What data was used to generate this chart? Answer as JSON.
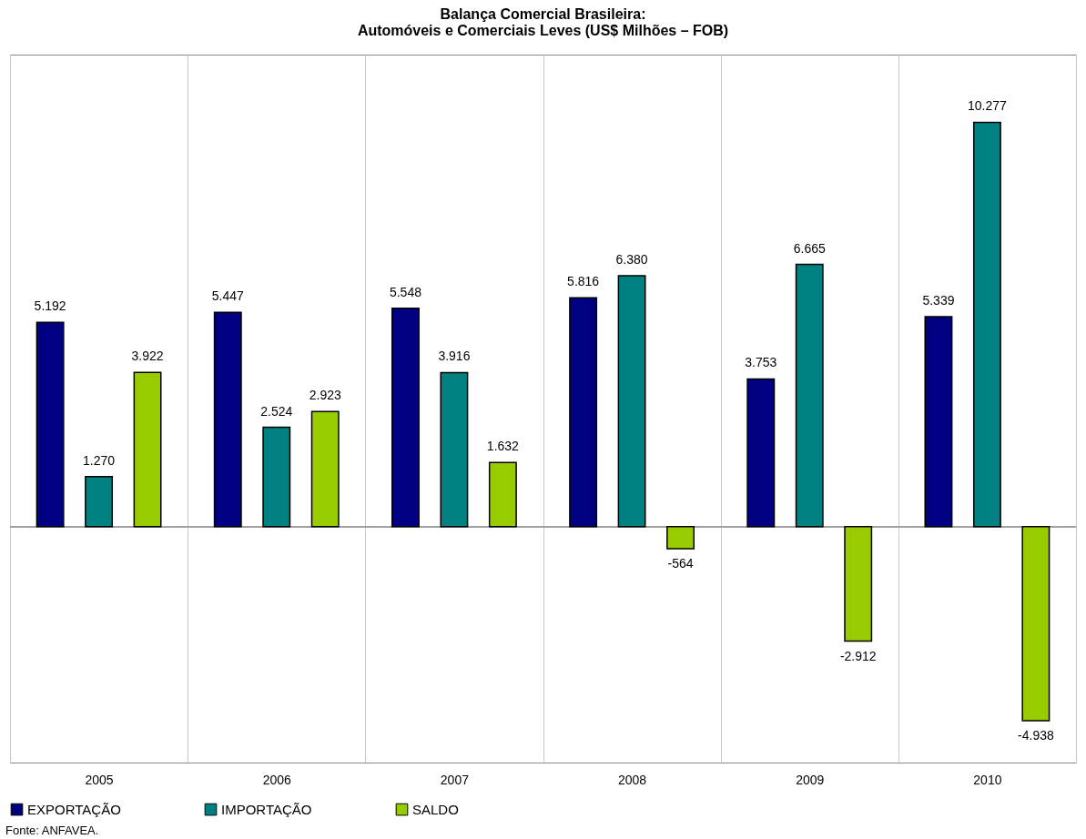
{
  "chart_data": {
    "type": "bar",
    "title": [
      "Balança Comercial Brasileira:",
      "Automóveis e Comerciais Leves (US$ Milhões – FOB)"
    ],
    "categories": [
      "2005",
      "2006",
      "2007",
      "2008",
      "2009",
      "2010"
    ],
    "series": [
      {
        "name": "EXPORTAÇÃO",
        "color": "#000080",
        "values": [
          5192,
          5447,
          5548,
          5816,
          3753,
          5339
        ],
        "value_labels": [
          "5.192",
          "5.447",
          "5.548",
          "5.816",
          "3.753",
          "5.339"
        ]
      },
      {
        "name": "IMPORTAÇÃO",
        "color": "#008080",
        "values": [
          1270,
          2524,
          3916,
          6380,
          6665,
          10277
        ],
        "value_labels": [
          "1.270",
          "2.524",
          "3.916",
          "6.380",
          "6.665",
          "10.277"
        ]
      },
      {
        "name": "SALDO",
        "color": "#99cc00",
        "values": [
          3922,
          2923,
          1632,
          -564,
          -2912,
          -4938
        ],
        "value_labels": [
          "3.922",
          "2.923",
          "1.632",
          "-564",
          "-2.912",
          "-4.938"
        ]
      }
    ],
    "grid": "x",
    "legend": "bottom",
    "annotations": [
      "Fonte: ANFAVEA."
    ]
  }
}
